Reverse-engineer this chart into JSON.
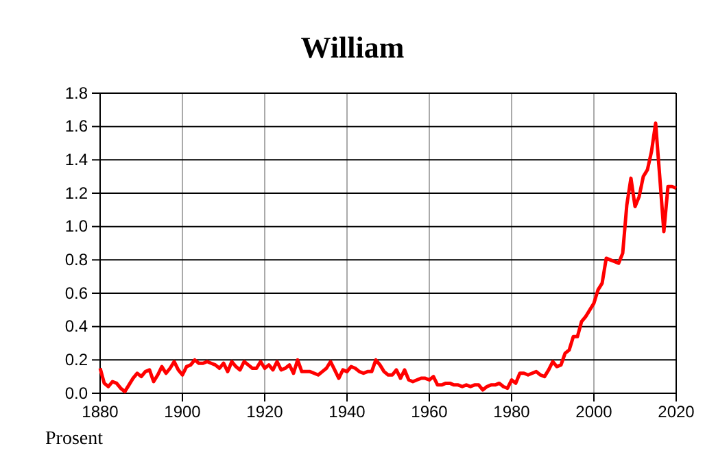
{
  "chart_data": {
    "type": "line",
    "title": "William",
    "annotations": [
      "Prosent"
    ],
    "x": [
      1880,
      1881,
      1882,
      1883,
      1884,
      1885,
      1886,
      1887,
      1888,
      1889,
      1890,
      1891,
      1892,
      1893,
      1894,
      1895,
      1896,
      1897,
      1898,
      1899,
      1900,
      1901,
      1902,
      1903,
      1904,
      1905,
      1906,
      1907,
      1908,
      1909,
      1910,
      1911,
      1912,
      1913,
      1914,
      1915,
      1916,
      1917,
      1918,
      1919,
      1920,
      1921,
      1922,
      1923,
      1924,
      1925,
      1926,
      1927,
      1928,
      1929,
      1930,
      1931,
      1932,
      1933,
      1934,
      1935,
      1936,
      1937,
      1938,
      1939,
      1940,
      1941,
      1942,
      1943,
      1944,
      1945,
      1946,
      1947,
      1948,
      1949,
      1950,
      1951,
      1952,
      1953,
      1954,
      1955,
      1956,
      1957,
      1958,
      1959,
      1960,
      1961,
      1962,
      1963,
      1964,
      1965,
      1966,
      1967,
      1968,
      1969,
      1970,
      1971,
      1972,
      1973,
      1974,
      1975,
      1976,
      1977,
      1978,
      1979,
      1980,
      1981,
      1982,
      1983,
      1984,
      1985,
      1986,
      1987,
      1988,
      1989,
      1990,
      1991,
      1992,
      1993,
      1994,
      1995,
      1996,
      1997,
      1998,
      1999,
      2000,
      2001,
      2002,
      2003,
      2004,
      2005,
      2006,
      2007,
      2008,
      2009,
      2010,
      2011,
      2012,
      2013,
      2014,
      2015,
      2016,
      2017,
      2018,
      2019,
      2020
    ],
    "series": [
      {
        "color": "#ff0000",
        "values": [
          0.15,
          0.06,
          0.04,
          0.07,
          0.06,
          0.03,
          0.01,
          0.05,
          0.09,
          0.12,
          0.1,
          0.13,
          0.14,
          0.07,
          0.11,
          0.16,
          0.12,
          0.15,
          0.19,
          0.14,
          0.11,
          0.16,
          0.17,
          0.2,
          0.18,
          0.18,
          0.19,
          0.18,
          0.17,
          0.15,
          0.18,
          0.13,
          0.19,
          0.16,
          0.14,
          0.19,
          0.17,
          0.15,
          0.15,
          0.19,
          0.15,
          0.17,
          0.14,
          0.19,
          0.14,
          0.15,
          0.17,
          0.12,
          0.2,
          0.13,
          0.13,
          0.13,
          0.12,
          0.11,
          0.13,
          0.15,
          0.19,
          0.14,
          0.09,
          0.14,
          0.13,
          0.16,
          0.15,
          0.13,
          0.12,
          0.13,
          0.13,
          0.2,
          0.17,
          0.13,
          0.11,
          0.11,
          0.14,
          0.09,
          0.14,
          0.08,
          0.07,
          0.08,
          0.09,
          0.09,
          0.08,
          0.1,
          0.05,
          0.05,
          0.06,
          0.06,
          0.05,
          0.05,
          0.04,
          0.05,
          0.04,
          0.05,
          0.05,
          0.02,
          0.04,
          0.05,
          0.05,
          0.06,
          0.04,
          0.03,
          0.08,
          0.06,
          0.12,
          0.12,
          0.11,
          0.12,
          0.13,
          0.11,
          0.1,
          0.14,
          0.19,
          0.16,
          0.17,
          0.24,
          0.26,
          0.34,
          0.34,
          0.43,
          0.46,
          0.5,
          0.54,
          0.62,
          0.66,
          0.81,
          0.8,
          0.79,
          0.78,
          0.84,
          1.13,
          1.29,
          1.12,
          1.18,
          1.3,
          1.34,
          1.45,
          1.62,
          1.3,
          0.97,
          1.24,
          1.24,
          1.23
        ]
      }
    ],
    "xlim": [
      1880,
      2020
    ],
    "xticks": [
      1880,
      1900,
      1920,
      1940,
      1960,
      1980,
      2000,
      2020
    ],
    "ylim": [
      0,
      1.8
    ],
    "yticks": [
      {
        "value": 0,
        "label": "0.0"
      },
      {
        "value": 0.2,
        "label": "0.2"
      },
      {
        "value": 0.4,
        "label": "0.4"
      },
      {
        "value": 0.6,
        "label": "0.6"
      },
      {
        "value": 0.8,
        "label": "0.8"
      },
      {
        "value": 1,
        "label": "1.0"
      },
      {
        "value": 1.2,
        "label": "1.2"
      },
      {
        "value": 1.4,
        "label": "1.4"
      },
      {
        "value": 1.6,
        "label": "1.6"
      },
      {
        "value": 1.8,
        "label": "1.8"
      }
    ],
    "grid": true,
    "marker": "none",
    "line_style": "solid"
  }
}
